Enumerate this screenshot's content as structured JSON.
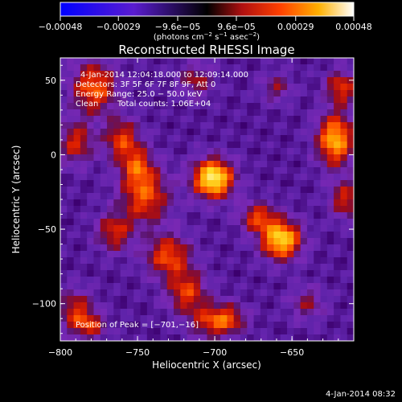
{
  "chart_data": {
    "type": "heatmap",
    "title": "Reconstructed RHESSI Image",
    "xlabel": "Heliocentric X (arcsec)",
    "ylabel": "Heliocentric Y (arcsec)",
    "xlim": [
      -800,
      -610
    ],
    "ylim": [
      -125,
      65
    ],
    "x_ticks": [
      -800,
      -750,
      -700,
      -650
    ],
    "x_tick_labels": [
      "−800",
      "−750",
      "−700",
      "−650"
    ],
    "y_ticks": [
      50,
      0,
      -50,
      -100
    ],
    "y_tick_labels": [
      "50",
      "0",
      "−50",
      "−100"
    ],
    "colorbar": {
      "min": -0.00048,
      "max": 0.00048,
      "ticks": [
        -0.00048,
        -0.00029,
        -9.6e-05,
        9.6e-05,
        0.00029,
        0.00048
      ],
      "tick_labels": [
        "−0.00048",
        "−0.00029",
        "−9.6e−05",
        "9.6e−05",
        "0.00029",
        "0.00048"
      ],
      "unit_main": "(photons cm",
      "unit_sup1": "−2",
      "unit_mid": " s",
      "unit_sup2": "−1",
      "unit_mid2": " asec",
      "unit_sup3": "−2",
      "unit_end": ")"
    },
    "annotations": {
      "time_range": "4-Jan-2014 12:04:18.000 to 12:09:14.000",
      "detectors": "Detectors: 3F 5F 6F 7F 8F 9F, Att 0",
      "energy": "Energy Range: 25.0 − 50.0 keV",
      "method": "Clean",
      "counts": "Total counts: 1.06E+04",
      "peak": "Position of Peak = [−701,−16]"
    },
    "peak": [
      -701,
      -16
    ],
    "sources": [
      {
        "x": -701,
        "y": -16,
        "sx": 9,
        "sy": 9,
        "a": 1.0
      },
      {
        "x": -745,
        "y": -28,
        "sx": 11,
        "sy": 13,
        "a": 0.55
      },
      {
        "x": -760,
        "y": 10,
        "sx": 8,
        "sy": 10,
        "a": 0.5
      },
      {
        "x": -778,
        "y": 45,
        "sx": 10,
        "sy": 12,
        "a": 0.6
      },
      {
        "x": -790,
        "y": 8,
        "sx": 8,
        "sy": 10,
        "a": 0.45
      },
      {
        "x": -765,
        "y": -52,
        "sx": 8,
        "sy": 9,
        "a": 0.45
      },
      {
        "x": -750,
        "y": -8,
        "sx": 7,
        "sy": 9,
        "a": 0.45
      },
      {
        "x": -730,
        "y": -68,
        "sx": 10,
        "sy": 10,
        "a": 0.55
      },
      {
        "x": -718,
        "y": -92,
        "sx": 9,
        "sy": 10,
        "a": 0.5
      },
      {
        "x": -702,
        "y": -112,
        "sx": 10,
        "sy": 8,
        "a": 0.45
      },
      {
        "x": -790,
        "y": -105,
        "sx": 8,
        "sy": 10,
        "a": 0.45
      },
      {
        "x": -780,
        "y": -115,
        "sx": 7,
        "sy": 6,
        "a": 0.4
      },
      {
        "x": -657,
        "y": -57,
        "sx": 9,
        "sy": 9,
        "a": 0.9
      },
      {
        "x": -672,
        "y": -42,
        "sx": 8,
        "sy": 7,
        "a": 0.5
      },
      {
        "x": -622,
        "y": 10,
        "sx": 8,
        "sy": 12,
        "a": 0.8
      },
      {
        "x": -618,
        "y": 45,
        "sx": 7,
        "sy": 8,
        "a": 0.5
      },
      {
        "x": -615,
        "y": -30,
        "sx": 7,
        "sy": 9,
        "a": 0.45
      },
      {
        "x": -712,
        "y": 50,
        "sx": 8,
        "sy": 8,
        "a": 0.35
      },
      {
        "x": -660,
        "y": 45,
        "sx": 7,
        "sy": 7,
        "a": 0.3
      },
      {
        "x": -690,
        "y": -110,
        "sx": 8,
        "sy": 7,
        "a": 0.35
      },
      {
        "x": -640,
        "y": -100,
        "sx": 8,
        "sy": 8,
        "a": 0.3
      }
    ]
  },
  "timestamp": "4-Jan-2014 08:32"
}
